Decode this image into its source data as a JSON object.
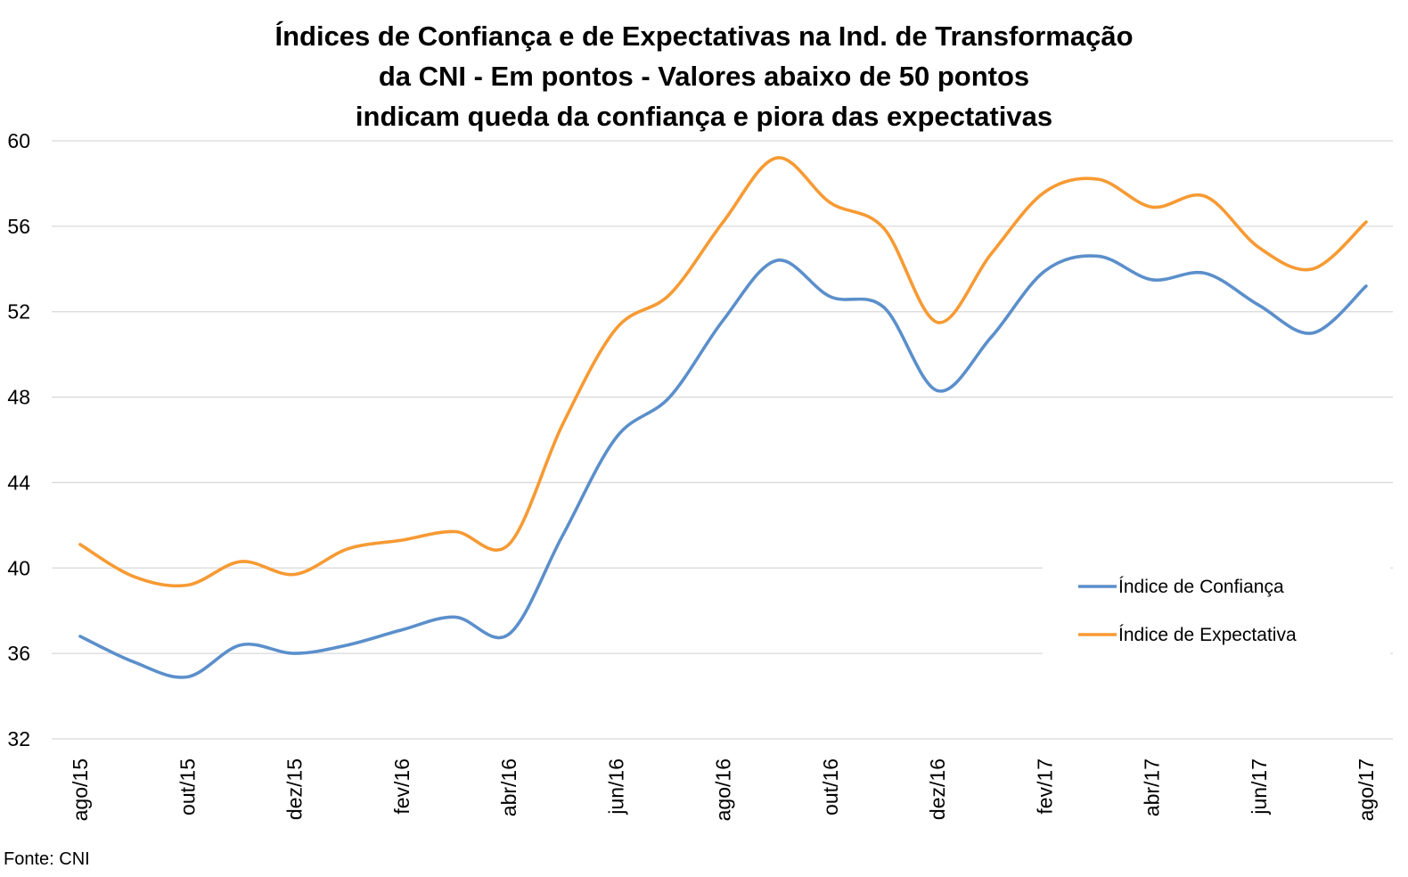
{
  "chart_data": {
    "type": "line",
    "title_lines": [
      "Índices de Confiança e de Expectativas na Ind. de Transformação",
      "da CNI - Em pontos - Valores abaixo de 50 pontos",
      "indicam queda da confiança e piora das expectativas"
    ],
    "x": [
      "ago/15",
      "set/15",
      "out/15",
      "nov/15",
      "dez/15",
      "jan/16",
      "fev/16",
      "mar/16",
      "abr/16",
      "mai/16",
      "jun/16",
      "jul/16",
      "ago/16",
      "set/16",
      "out/16",
      "nov/16",
      "dez/16",
      "jan/17",
      "fev/17",
      "mar/17",
      "abr/17",
      "mai/17",
      "jun/17",
      "jul/17",
      "ago/17"
    ],
    "x_tick_labels": [
      "ago/15",
      "out/15",
      "dez/15",
      "fev/16",
      "abr/16",
      "jun/16",
      "ago/16",
      "out/16",
      "dez/16",
      "fev/17",
      "abr/17",
      "jun/17",
      "ago/17"
    ],
    "y_ticks": [
      32,
      36,
      40,
      44,
      48,
      52,
      56,
      60
    ],
    "ylim": [
      32,
      60
    ],
    "grid": true,
    "legend_position": "right",
    "series": [
      {
        "name": "Índice de Confiança",
        "color": "#5B8FCB",
        "values": [
          36.8,
          35.6,
          34.9,
          36.4,
          36.0,
          36.4,
          37.1,
          37.7,
          36.9,
          41.5,
          46.1,
          48.0,
          51.6,
          54.4,
          52.7,
          52.2,
          48.3,
          50.8,
          53.9,
          54.6,
          53.5,
          53.8,
          52.3,
          51.0,
          53.2
        ]
      },
      {
        "name": "Índice de Expectativa",
        "color": "#F79A33",
        "values": [
          41.1,
          39.6,
          39.2,
          40.3,
          39.7,
          40.9,
          41.3,
          41.7,
          41.1,
          46.7,
          51.2,
          52.8,
          56.2,
          59.2,
          57.1,
          55.9,
          51.5,
          54.7,
          57.6,
          58.2,
          56.9,
          57.4,
          55.0,
          54.0,
          56.2
        ]
      }
    ]
  },
  "source": "Fonte: CNI"
}
